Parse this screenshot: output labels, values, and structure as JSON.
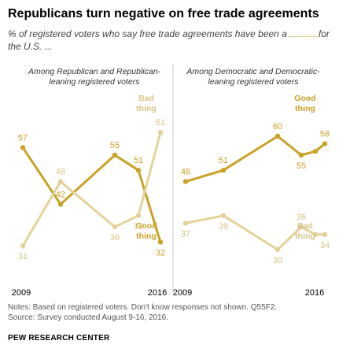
{
  "title": "Republicans turn negative on free trade agreements",
  "subtitle_before": "% of registered voters who say free trade agreements have been a",
  "subtitle_after": "for the U.S. ...",
  "colors": {
    "good": "#c9a227",
    "bad": "#e3d39a",
    "divider": "#cccccc",
    "axis": "#999999"
  },
  "chart_data": [
    {
      "type": "line",
      "title": "Among Republican and Republican-leaning registered voters",
      "title_lines": [
        "Among Republican and Republican-",
        "leaning registered voters"
      ],
      "x_tick_labels": [
        "2009",
        "2016"
      ],
      "ylim": [
        20,
        70
      ],
      "series": [
        {
          "name": "Good thing",
          "name_lines": [
            "Good",
            "thing"
          ],
          "points": [
            57,
            42,
            null,
            55,
            51,
            32
          ],
          "labels": [
            "57",
            "42",
            "",
            "55",
            "51",
            "32"
          ]
        },
        {
          "name": "Bad thing",
          "name_lines": [
            "Bad",
            "thing"
          ],
          "points": [
            31,
            48,
            36,
            null,
            39,
            61
          ],
          "labels": [
            "31",
            "48",
            "36",
            "",
            "39",
            "61"
          ]
        }
      ]
    },
    {
      "type": "line",
      "title": "Among Democratic and Democratic-leaning registered voters",
      "title_lines": [
        "Among Democratic and Democratic-",
        "leaning registered voters"
      ],
      "x_tick_labels": [
        "2009",
        "2016"
      ],
      "ylim": [
        20,
        70
      ],
      "series": [
        {
          "name": "Good thing",
          "name_lines": [
            "Good",
            "thing"
          ],
          "points": [
            48,
            51,
            60,
            55,
            56,
            58
          ],
          "labels": [
            "48",
            "51",
            "60",
            "55",
            "",
            "58"
          ]
        },
        {
          "name": "Bad thing",
          "name_lines": [
            "Bad",
            "thing"
          ],
          "points": [
            37,
            39,
            30,
            36,
            34,
            34
          ],
          "labels": [
            "37",
            "39",
            "30",
            "36",
            "",
            "34"
          ]
        }
      ]
    }
  ],
  "notes": "Notes: Based on registered voters. Don't know responses not shown. Q55F2.",
  "source": "Source: Survey conducted August 9-16, 2016.",
  "org": "PEW RESEARCH CENTER"
}
